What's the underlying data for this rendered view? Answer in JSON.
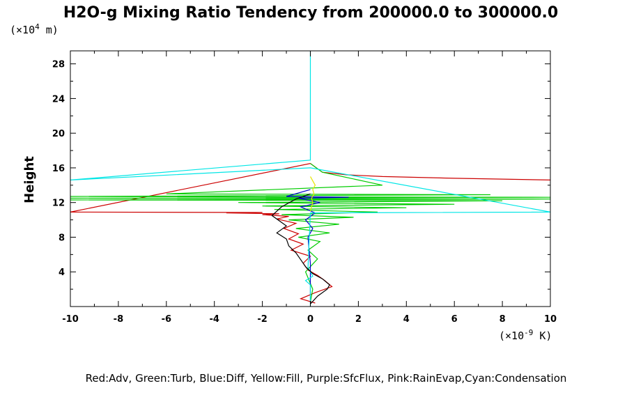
{
  "chart_data": {
    "type": "line",
    "title": "H2O-g Mixing Ratio Tendency from 200000.0 to 300000.0",
    "ylabel": "Height",
    "y_unit_prefix": "(×10",
    "y_unit_exp": "4",
    "y_unit_suffix": " m)",
    "x_unit_prefix": "(×10",
    "x_unit_exp": "-9",
    "x_unit_suffix": " K)",
    "xlim": [
      -10,
      10
    ],
    "ylim": [
      0,
      29.5
    ],
    "x_tick_labels": [
      "-10",
      "-8",
      "-6",
      "-4",
      "-2",
      "0",
      "2",
      "4",
      "6",
      "8",
      "10"
    ],
    "y_tick_labels": [
      "4",
      "8",
      "12",
      "16",
      "20",
      "24",
      "28"
    ],
    "legend_text": "Red:Adv, Green:Turb, Blue:Diff, Yellow:Fill, Purple:SfcFlux, Pink:RainEvap,Cyan:Condensation",
    "colors": {
      "red": "#cc0000",
      "green": "#00cc00",
      "blue": "#0000cc",
      "yellow": "#e6e600",
      "cyan": "#00e6e6",
      "black": "#000000"
    },
    "series": [
      {
        "color": "#cc0000",
        "x": [
          0.2,
          -0.4,
          0.2,
          0.9,
          0.6,
          0.3,
          -0.1,
          -0.3,
          0.0,
          -0.8,
          -0.3,
          -0.9,
          -0.5,
          -1.1,
          -0.6,
          -1.4,
          -0.9,
          -2.0,
          -1.3,
          -3.5,
          -2.0,
          -10.0,
          0.0,
          0.5,
          1.5,
          3.0,
          6.0,
          10.0
        ],
        "y": [
          0.4,
          0.9,
          1.6,
          2.3,
          3.0,
          3.6,
          4.2,
          5.0,
          5.8,
          6.5,
          7.2,
          7.8,
          8.4,
          9.0,
          9.6,
          10.1,
          10.4,
          10.6,
          10.7,
          10.8,
          10.85,
          10.9,
          16.5,
          15.5,
          15.2,
          15.0,
          14.8,
          14.6
        ]
      },
      {
        "color": "#00cc00",
        "x": [
          0.0,
          0.1,
          -0.2,
          0.3,
          -0.1,
          0.4,
          -0.5,
          0.8,
          -0.6,
          1.2,
          -0.9,
          1.8,
          -1.2,
          2.8,
          -1.5,
          4.0,
          -2.0,
          6.0,
          -3.0,
          8.0,
          -10.0,
          10.0,
          -10.0,
          10.0,
          -10.0,
          7.5,
          -6.0,
          3.0,
          0.5,
          0.0
        ],
        "y": [
          0.5,
          2.0,
          4.0,
          5.5,
          6.5,
          7.5,
          8.0,
          8.5,
          9.0,
          9.5,
          10.0,
          10.3,
          10.6,
          10.9,
          11.2,
          11.4,
          11.6,
          11.8,
          12.0,
          12.2,
          12.3,
          12.4,
          12.5,
          12.6,
          12.7,
          12.9,
          13.0,
          14.0,
          15.5,
          16.5
        ]
      },
      {
        "color": "#0000cc",
        "x": [
          0.0,
          0.0,
          -0.1,
          0.1,
          -0.2,
          0.2,
          -0.4,
          0.4,
          -0.5,
          1.6,
          -1.0,
          0.0
        ],
        "y": [
          0.5,
          5.0,
          8.0,
          9.0,
          10.0,
          10.8,
          11.5,
          12.0,
          12.5,
          12.6,
          12.7,
          13.5
        ]
      },
      {
        "color": "#e6e600",
        "x": [
          0.0,
          0.05,
          0.1,
          0.05,
          0.15,
          0.1,
          0.2,
          0.1,
          0.0
        ],
        "y": [
          11.0,
          11.5,
          12.0,
          12.5,
          13.0,
          13.5,
          14.0,
          14.5,
          15.0
        ]
      },
      {
        "color": "#00e6e6",
        "x": [
          0.0,
          0.0,
          -0.2,
          0.1,
          -0.1,
          0.0,
          10.0,
          0.0,
          -10.0,
          0.0,
          0.0
        ],
        "y": [
          0.0,
          2.5,
          3.0,
          3.5,
          4.5,
          10.8,
          10.9,
          16.0,
          14.6,
          16.9,
          29.5
        ]
      },
      {
        "color": "#000000",
        "x": [
          0.0,
          0.3,
          0.7,
          0.8,
          0.5,
          0.1,
          -0.2,
          -0.4,
          -0.6,
          -0.9,
          -1.0,
          -1.4,
          -1.0,
          -1.6,
          -1.2,
          -0.6,
          0.0
        ],
        "y": [
          0.3,
          1.2,
          2.0,
          2.5,
          3.2,
          3.8,
          4.6,
          5.4,
          6.2,
          7.0,
          7.8,
          8.5,
          9.3,
          10.5,
          11.5,
          12.4,
          13.0
        ]
      }
    ]
  }
}
